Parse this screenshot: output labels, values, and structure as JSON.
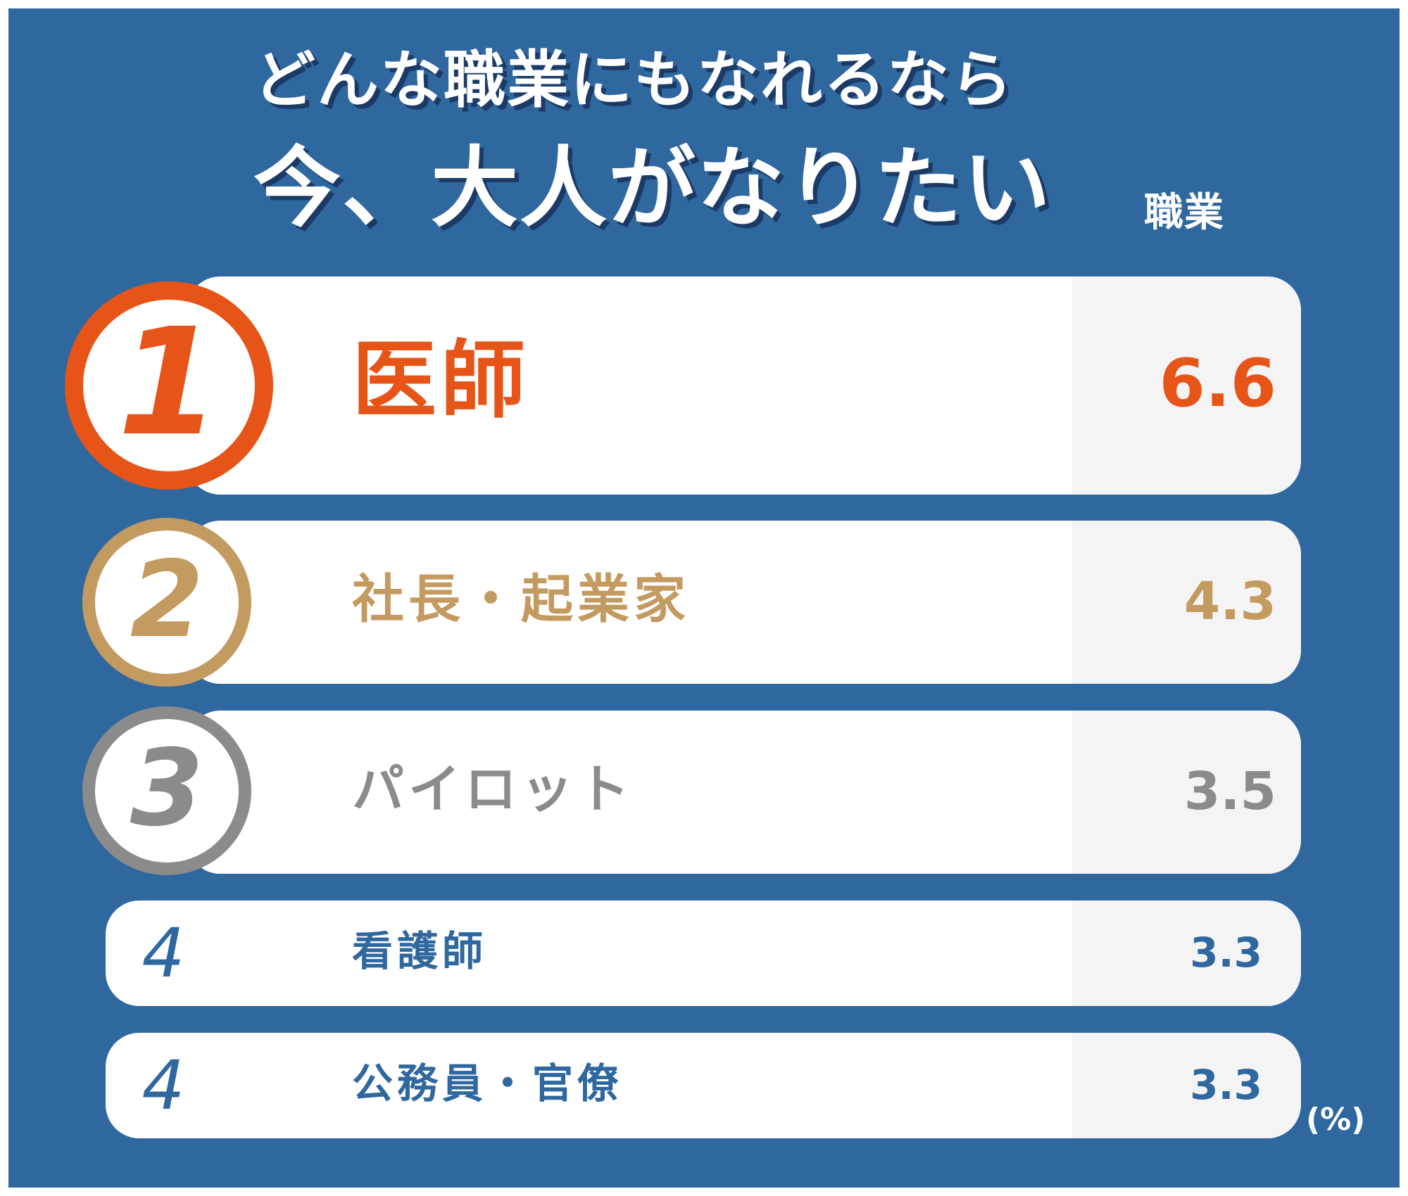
{
  "title": {
    "line1": "どんな職業にもなれるなら",
    "line2": "今、大人がなりたい",
    "line2_suffix": "職業"
  },
  "colors": {
    "background": "#2f679f",
    "rank1": "#e75418",
    "rank2": "#c39a5f",
    "rank3": "#8b8b8b",
    "rank_other": "#2f679f"
  },
  "chart_data": {
    "type": "table",
    "unit": "(%)",
    "rows": [
      {
        "rank": "1",
        "job": "医師",
        "value": 6.6
      },
      {
        "rank": "2",
        "job": "社長・起業家",
        "value": 4.3
      },
      {
        "rank": "3",
        "job": "パイロット",
        "value": 3.5
      },
      {
        "rank": "4",
        "job": "看護師",
        "value": 3.3
      },
      {
        "rank": "4",
        "job": "公務員・官僚",
        "value": 3.3
      }
    ]
  }
}
